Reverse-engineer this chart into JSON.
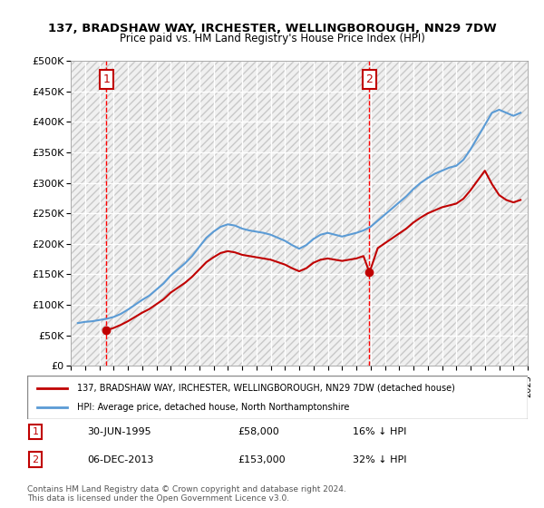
{
  "title": "137, BRADSHAW WAY, IRCHESTER, WELLINGBOROUGH, NN29 7DW",
  "subtitle": "Price paid vs. HM Land Registry's House Price Index (HPI)",
  "legend_line1": "137, BRADSHAW WAY, IRCHESTER, WELLINGBOROUGH, NN29 7DW (detached house)",
  "legend_line2": "HPI: Average price, detached house, North Northamptonshire",
  "footer": "Contains HM Land Registry data © Crown copyright and database right 2024.\nThis data is licensed under the Open Government Licence v3.0.",
  "transaction1_label": "1",
  "transaction1_date": "30-JUN-1995",
  "transaction1_price": "£58,000",
  "transaction1_hpi": "16% ↓ HPI",
  "transaction1_year": 1995.5,
  "transaction1_value": 58000,
  "transaction2_label": "2",
  "transaction2_date": "06-DEC-2013",
  "transaction2_price": "£153,000",
  "transaction2_hpi": "32% ↓ HPI",
  "transaction2_year": 2013.92,
  "transaction2_value": 153000,
  "hpi_color": "#5b9bd5",
  "price_color": "#c00000",
  "vline_color": "#ff0000",
  "bg_hatch_color": "#d0d0d0",
  "ylim": [
    0,
    500000
  ],
  "yticks": [
    0,
    50000,
    100000,
    150000,
    200000,
    250000,
    300000,
    350000,
    400000,
    450000,
    500000
  ],
  "hpi_data": {
    "years": [
      1993.5,
      1994.0,
      1994.5,
      1995.0,
      1995.5,
      1996.0,
      1996.5,
      1997.0,
      1997.5,
      1998.0,
      1998.5,
      1999.0,
      1999.5,
      2000.0,
      2000.5,
      2001.0,
      2001.5,
      2002.0,
      2002.5,
      2003.0,
      2003.5,
      2004.0,
      2004.5,
      2005.0,
      2005.5,
      2006.0,
      2006.5,
      2007.0,
      2007.5,
      2008.0,
      2008.5,
      2009.0,
      2009.5,
      2010.0,
      2010.5,
      2011.0,
      2011.5,
      2012.0,
      2012.5,
      2013.0,
      2013.5,
      2014.0,
      2014.5,
      2015.0,
      2015.5,
      2016.0,
      2016.5,
      2017.0,
      2017.5,
      2018.0,
      2018.5,
      2019.0,
      2019.5,
      2020.0,
      2020.5,
      2021.0,
      2021.5,
      2022.0,
      2022.5,
      2023.0,
      2023.5,
      2024.0,
      2024.5
    ],
    "values": [
      70000,
      72000,
      73000,
      75000,
      77000,
      80000,
      85000,
      92000,
      100000,
      108000,
      115000,
      125000,
      135000,
      148000,
      158000,
      168000,
      180000,
      195000,
      210000,
      220000,
      228000,
      232000,
      230000,
      225000,
      222000,
      220000,
      218000,
      215000,
      210000,
      205000,
      198000,
      192000,
      198000,
      208000,
      215000,
      218000,
      215000,
      212000,
      215000,
      218000,
      222000,
      228000,
      238000,
      248000,
      258000,
      268000,
      278000,
      290000,
      300000,
      308000,
      315000,
      320000,
      325000,
      328000,
      338000,
      355000,
      375000,
      395000,
      415000,
      420000,
      415000,
      410000,
      415000
    ]
  },
  "price_hpi_data": {
    "years": [
      1993.5,
      1994.0,
      1994.5,
      1995.0,
      1995.5,
      1996.0,
      1996.5,
      1997.0,
      1997.5,
      1998.0,
      1998.5,
      1999.0,
      1999.5,
      2000.0,
      2000.5,
      2001.0,
      2001.5,
      2002.0,
      2002.5,
      2003.0,
      2003.5,
      2004.0,
      2004.5,
      2005.0,
      2005.5,
      2006.0,
      2006.5,
      2007.0,
      2007.5,
      2008.0,
      2008.5,
      2009.0,
      2009.5,
      2010.0,
      2010.5,
      2011.0,
      2011.5,
      2012.0,
      2012.5,
      2013.0,
      2013.5,
      2013.92,
      2014.5,
      2015.0,
      2015.5,
      2016.0,
      2016.5,
      2017.0,
      2017.5,
      2018.0,
      2018.5,
      2019.0,
      2019.5,
      2020.0,
      2020.5,
      2021.0,
      2021.5,
      2022.0,
      2022.5,
      2023.0,
      2023.5,
      2024.0,
      2024.5
    ],
    "values": [
      null,
      null,
      null,
      null,
      58000,
      62000,
      67000,
      73000,
      80000,
      87000,
      93000,
      101000,
      109000,
      120000,
      128000,
      136000,
      146000,
      158000,
      170000,
      178000,
      185000,
      188000,
      186000,
      182000,
      180000,
      178000,
      176000,
      174000,
      170000,
      166000,
      160000,
      155000,
      160000,
      169000,
      174000,
      176000,
      174000,
      172000,
      174000,
      176000,
      180000,
      153000,
      193000,
      201000,
      209000,
      217000,
      225000,
      235000,
      243000,
      250000,
      255000,
      260000,
      263000,
      266000,
      274000,
      288000,
      304000,
      320000,
      298000,
      280000,
      272000,
      268000,
      272000
    ]
  }
}
